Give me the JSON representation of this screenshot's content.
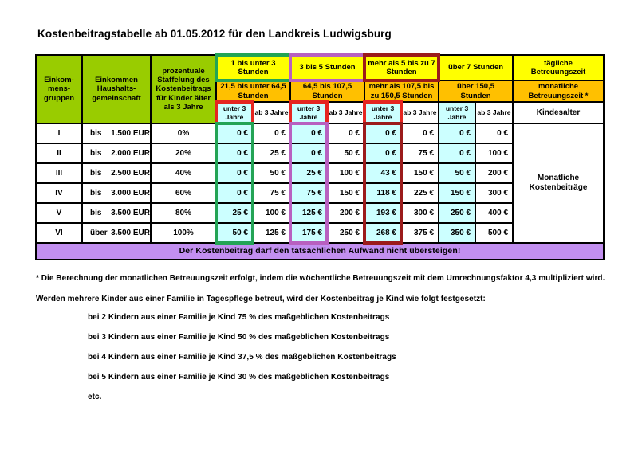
{
  "title": "Kostenbeitragstabelle ab 01.05.2012 für den Landkreis Ludwigsburg",
  "table": {
    "corner_headers": [
      "Einkom-\nmens-\ngruppen",
      "Einkommen\nHaushalts-\ngemeinschaft",
      "prozentuale\nStaffelung des\nKostenbeitrags\nfür Kinder älter\nals 3 Jahre"
    ],
    "time_slot_headers": [
      "1 bis unter 3\nStunden",
      "3 bis 5 Stunden",
      "mehr als 5 bis zu 7\nStunden",
      "über 7 Stunden"
    ],
    "monthly_headers": [
      "21,5 bis unter 64,5\nStunden",
      "64,5 bis 107,5\nStunden",
      "mehr als 107,5 bis\nzu 150,5 Stunden",
      "über 150,5\nStunden"
    ],
    "age_under_label": "unter 3\nJahre",
    "age_over_label": "ab 3 Jahre",
    "daily_care_header": "tägliche\nBetreuungszeit",
    "monthly_care_header": "monatliche\nBetreuungszeit *",
    "age_column_header": "Kindesalter",
    "monthly_contrib_label": "Monatliche\nKostenbeiträge",
    "rows": [
      {
        "group": "I",
        "income_prefix": "bis",
        "income_value": "1.500 EUR",
        "percent": "0%",
        "values": [
          "0 €",
          "0 €",
          "0 €",
          "0 €",
          "0 €",
          "0 €",
          "0 €",
          "0 €"
        ]
      },
      {
        "group": "II",
        "income_prefix": "bis",
        "income_value": "2.000 EUR",
        "percent": "20%",
        "values": [
          "0 €",
          "25 €",
          "0 €",
          "50 €",
          "0 €",
          "75 €",
          "0 €",
          "100 €"
        ]
      },
      {
        "group": "III",
        "income_prefix": "bis",
        "income_value": "2.500 EUR",
        "percent": "40%",
        "values": [
          "0 €",
          "50 €",
          "25 €",
          "100 €",
          "43 €",
          "150 €",
          "50 €",
          "200 €"
        ]
      },
      {
        "group": "IV",
        "income_prefix": "bis",
        "income_value": "3.000 EUR",
        "percent": "60%",
        "values": [
          "0 €",
          "75 €",
          "75 €",
          "150 €",
          "118 €",
          "225 €",
          "150 €",
          "300 €"
        ]
      },
      {
        "group": "V",
        "income_prefix": "bis",
        "income_value": "3.500 EUR",
        "percent": "80%",
        "values": [
          "25 €",
          "100 €",
          "125 €",
          "200 €",
          "193 €",
          "300 €",
          "250 €",
          "400 €"
        ]
      },
      {
        "group": "VI",
        "income_prefix": "über",
        "income_value": "3.500 EUR",
        "percent": "100%",
        "values": [
          "50 €",
          "125 €",
          "175 €",
          "250 €",
          "268 €",
          "375 €",
          "350 €",
          "500 €"
        ]
      }
    ],
    "banner": "Der Kostenbeitrag darf den tatsächlichen Aufwand nicht übersteigen!"
  },
  "notes": {
    "footnote": "* Die Berechnung der monatlichen Betreuungszeit erfolgt, indem die wöchentliche Betreuungszeit mit dem Umrechnungsfaktor 4,3 multipliziert wird.",
    "intro": "Werden mehrere Kinder aus einer Familie in Tagespflege betreut, wird der Kostenbeitrag je Kind wie folgt festgesetzt:",
    "items": [
      "bei 2 Kindern aus einer Familie je Kind 75 % des maßgeblichen Kostenbeitrags",
      "bei 3 Kindern aus einer Familie je Kind 50 % des maßgeblichen Kostenbeitrags",
      "bei 4 Kindern aus einer Familie je Kind 37,5 % des maßgeblichen Kostenbeitrags",
      "bei 5 Kindern aus einer Familie je Kind 30 % des maßgeblichen Kostenbeitrags",
      "etc."
    ]
  },
  "colors": {
    "header_green": "#99CC00",
    "header_yellow": "#FFFF00",
    "header_orange": "#FFC000",
    "cell_cyan": "#CCFFFF",
    "banner_purple": "#C28FF0",
    "slot_borders": [
      "#23A455",
      "#B860C0",
      "#9B1B1B"
    ],
    "age_cell_border": "#E52520"
  }
}
